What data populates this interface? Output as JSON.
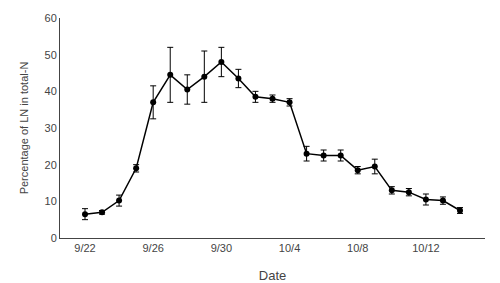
{
  "chart_data": {
    "type": "line",
    "xlabel": "Date",
    "ylabel": "Percentage of LN in total-N",
    "categories": [
      "9/22",
      null,
      null,
      null,
      "9/26",
      null,
      null,
      null,
      "9/30",
      null,
      null,
      null,
      "10/4",
      null,
      null,
      null,
      "10/8",
      null,
      null,
      null,
      "10/12",
      null,
      null
    ],
    "values": [
      6.5,
      7.0,
      10.2,
      19.0,
      37.0,
      44.5,
      40.5,
      44.0,
      48.0,
      43.5,
      38.5,
      38.0,
      37.0,
      23.0,
      22.5,
      22.5,
      18.5,
      19.5,
      13.0,
      12.5,
      10.5,
      10.2,
      7.5
    ],
    "yerr": [
      1.5,
      0.5,
      1.5,
      1.0,
      4.5,
      7.5,
      4.0,
      7.0,
      4.0,
      2.5,
      1.5,
      1.0,
      1.0,
      2.0,
      1.5,
      1.5,
      1.0,
      2.0,
      1.0,
      1.0,
      1.5,
      1.0,
      0.8
    ],
    "ylim": [
      0,
      60
    ],
    "yticks": [
      0,
      10,
      20,
      30,
      40,
      50,
      60
    ],
    "color": "black",
    "marker": "o",
    "grid": false
  }
}
